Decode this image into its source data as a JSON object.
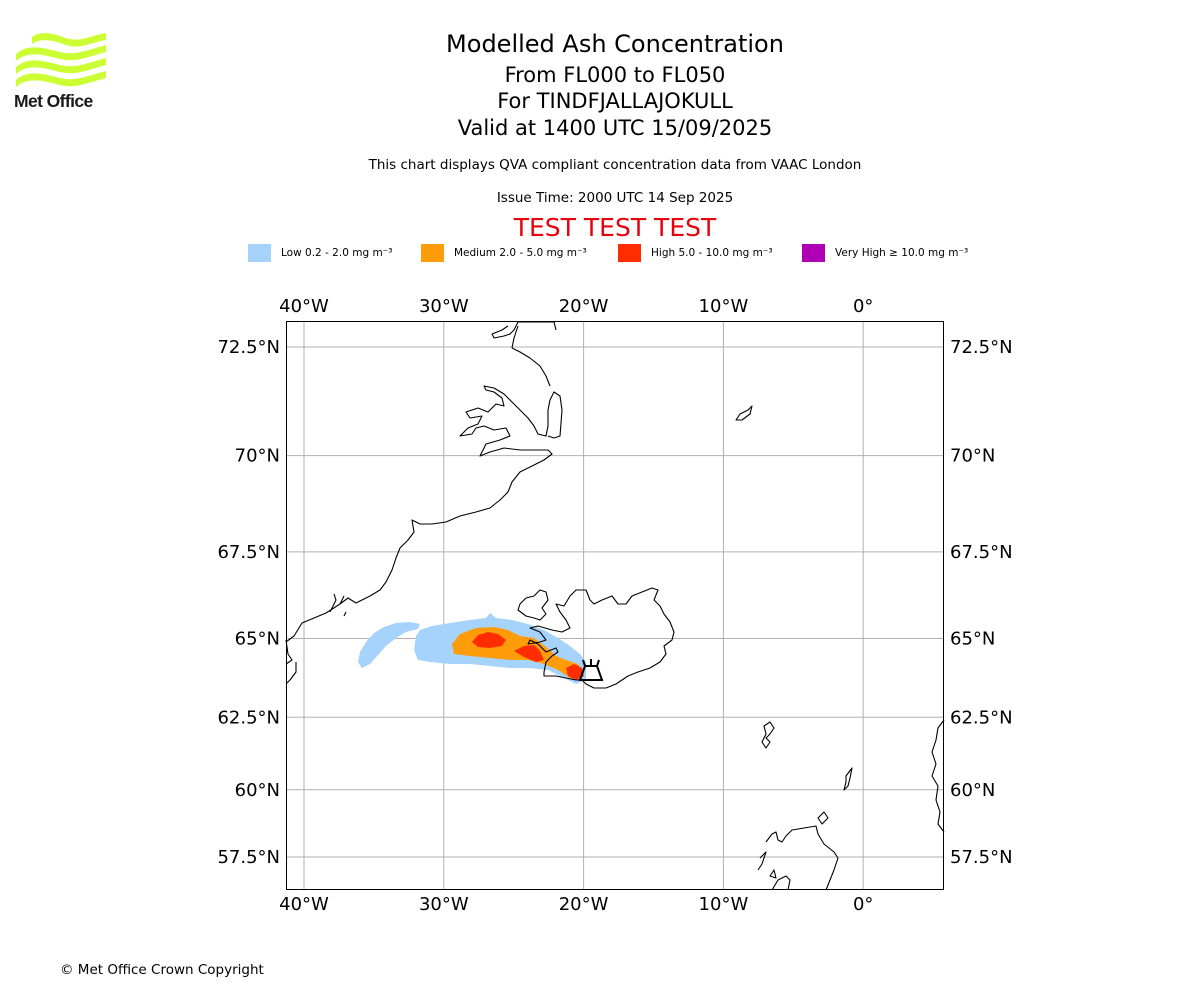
{
  "logo": {
    "text": "Met Office",
    "color": "#ccff33"
  },
  "header": {
    "title": "Modelled Ash Concentration",
    "levels": "From FL000 to FL050",
    "volcano": "For TINDFJALLAJOKULL",
    "valid": "Valid at 1400 UTC 15/09/2025",
    "note": "This chart displays QVA compliant concentration data from VAAC London",
    "issue": "Issue Time: 2000 UTC 14 Sep 2025",
    "test_banner": "TEST TEST TEST"
  },
  "legend": [
    {
      "label": "Low 0.2 - 2.0 mg m⁻³",
      "color": "#a5d3fc"
    },
    {
      "label": "Medium 2.0 - 5.0 mg m⁻³",
      "color": "#ff9c0a"
    },
    {
      "label": "High 5.0 - 10.0 mg m⁻³",
      "color": "#ff2d00"
    },
    {
      "label": "Very High ≥ 10.0 mg m⁻³",
      "color": "#b000b5"
    }
  ],
  "map": {
    "lon_range": [
      -42,
      5
    ],
    "lat_range": [
      56.5,
      73
    ],
    "lon_ticks": [
      {
        "lon": -40,
        "label": "40°W"
      },
      {
        "lon": -30,
        "label": "30°W"
      },
      {
        "lon": -20,
        "label": "20°W"
      },
      {
        "lon": -10,
        "label": "10°W"
      },
      {
        "lon": 0,
        "label": "0°"
      }
    ],
    "lat_ticks": [
      {
        "lat": 72.5,
        "label": "72.5°N"
      },
      {
        "lat": 70,
        "label": "70°N"
      },
      {
        "lat": 67.5,
        "label": "67.5°N"
      },
      {
        "lat": 65,
        "label": "65°N"
      },
      {
        "lat": 62.5,
        "label": "62.5°N"
      },
      {
        "lat": 60,
        "label": "60°N"
      },
      {
        "lat": 57.5,
        "label": "57.5°N"
      }
    ],
    "volcano_marker": {
      "lon": -19.4,
      "lat": 63.8
    }
  },
  "footer": {
    "copyright": "© Met Office Crown Copyright"
  }
}
